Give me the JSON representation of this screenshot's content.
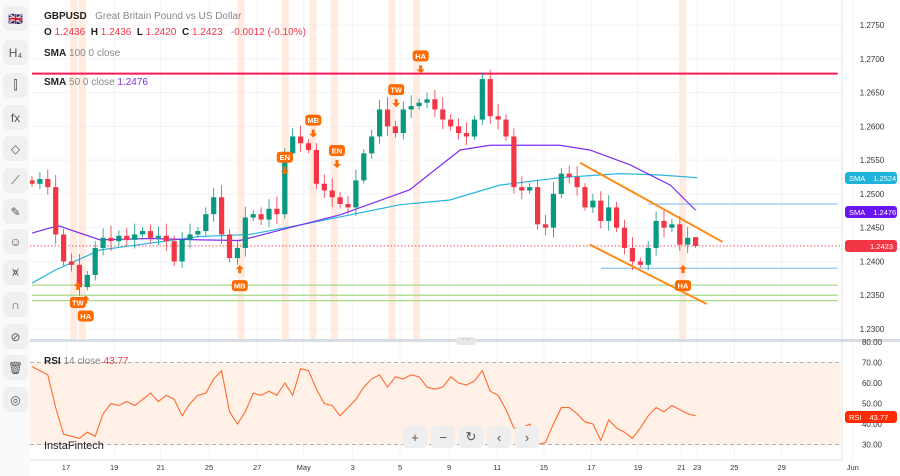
{
  "symbol": {
    "ticker": "GBPUSD",
    "name": "Great Britain Pound vs US Dollar"
  },
  "ohlc": {
    "o_label": "O",
    "o": "1.2436",
    "h_label": "H",
    "h": "1.2436",
    "l_label": "L",
    "l": "1.2420",
    "c_label": "C",
    "c": "1.2423",
    "change": "-0.0012 (-0.10%)"
  },
  "indicators": {
    "sma100": {
      "name": "SMA",
      "params": "100 0 close",
      "value": "1.2524",
      "color": "#26b6e0"
    },
    "sma50": {
      "name": "SMA",
      "params": "50 0 close",
      "value": "1.2476",
      "color": "#7e2ef0"
    },
    "rsi": {
      "name": "RSI",
      "params": "14 close",
      "value": "43.77",
      "color": "#ff6a2e"
    }
  },
  "sidebar": {
    "items": [
      {
        "name": "flag-gb-icon",
        "glyph": "🇬🇧"
      },
      {
        "name": "timeframe-h4-button",
        "glyph": "H₄"
      },
      {
        "name": "candles-icon",
        "glyph": "⫿"
      },
      {
        "name": "fx-indicators-icon",
        "glyph": "fx"
      },
      {
        "name": "shapes-icon",
        "glyph": "◇"
      },
      {
        "name": "lines-icon",
        "glyph": "⟋"
      },
      {
        "name": "brush-icon",
        "glyph": "✎"
      },
      {
        "name": "smiley-icon",
        "glyph": "☺"
      },
      {
        "name": "patterns-icon",
        "glyph": "⩙"
      },
      {
        "name": "magnet-icon",
        "glyph": "∩"
      },
      {
        "name": "eye-off-icon",
        "glyph": "⊘"
      },
      {
        "name": "trash-all-icon",
        "glyph": "🗑"
      },
      {
        "name": "camera-icon",
        "glyph": "◎"
      }
    ]
  },
  "controls": {
    "zoom_in": "+",
    "zoom_out": "−",
    "reset": "↻",
    "prev": "‹",
    "next": "›"
  },
  "watermark": "InstaFintech",
  "colors": {
    "up": "#089981",
    "down": "#f23645",
    "resistance": "#f7195a",
    "channel": "#ff8c1a",
    "support_blue": "#90c4f8",
    "support_green": "#a8d98a",
    "signal": "#ff6a00",
    "band": "#ffe4d6"
  },
  "chart_data": {
    "type": "candlestick",
    "price_axis": {
      "min": 1.2275,
      "max": 1.2775,
      "ticks": [
        "1.2750",
        "1.2700",
        "1.2650",
        "1.2600",
        "1.2550",
        "1.2500",
        "1.2450",
        "1.2400",
        "1.2350",
        "1.2300"
      ]
    },
    "time_axis": [
      {
        "label": "17",
        "at": 4.3
      },
      {
        "label": "19",
        "at": 10.4
      },
      {
        "label": "21",
        "at": 16.3
      },
      {
        "label": "25",
        "at": 22.4
      },
      {
        "label": "27",
        "at": 28.5
      },
      {
        "label": "May",
        "at": 34.4
      },
      {
        "label": "3",
        "at": 40.6
      },
      {
        "label": "5",
        "at": 46.6
      },
      {
        "label": "9",
        "at": 52.8
      },
      {
        "label": "11",
        "at": 58.9
      },
      {
        "label": "15",
        "at": 64.8
      },
      {
        "label": "17",
        "at": 70.8
      },
      {
        "label": "19",
        "at": 76.7
      },
      {
        "label": "21",
        "at": 82.2
      },
      {
        "label": "23",
        "at": 84.2
      },
      {
        "label": "25",
        "at": 88.9
      },
      {
        "label": "29",
        "at": 94.9
      },
      {
        "label": "Jun",
        "at": 103.9
      }
    ],
    "first_open": 1.252,
    "last_candle": {
      "open": 1.2436,
      "high": 1.2436,
      "low": 1.242,
      "close": 1.2423
    },
    "closes": [
      1.2515,
      1.2522,
      1.251,
      1.244,
      1.24,
      1.2395,
      1.2362,
      1.238,
      1.242,
      1.2435,
      1.243,
      1.2438,
      1.2432,
      1.244,
      1.2445,
      1.2435,
      1.2438,
      1.243,
      1.24,
      1.2432,
      1.244,
      1.2445,
      1.247,
      1.2495,
      1.244,
      1.2405,
      1.242,
      1.2465,
      1.247,
      1.2462,
      1.2478,
      1.247,
      1.256,
      1.2585,
      1.2575,
      1.2565,
      1.2515,
      1.2505,
      1.2495,
      1.2485,
      1.248,
      1.252,
      1.256,
      1.2585,
      1.2625,
      1.26,
      1.259,
      1.2625,
      1.263,
      1.2635,
      1.264,
      1.2625,
      1.261,
      1.26,
      1.259,
      1.2585,
      1.261,
      1.267,
      1.2615,
      1.261,
      1.2585,
      1.251,
      1.2505,
      1.251,
      1.2455,
      1.245,
      1.25,
      1.253,
      1.2525,
      1.251,
      1.248,
      1.249,
      1.246,
      1.248,
      1.245,
      1.242,
      1.24,
      1.2395,
      1.242,
      1.246,
      1.245,
      1.2455,
      1.2425,
      1.2435,
      1.2423
    ],
    "sma50": [
      [
        0,
        1.2442
      ],
      [
        3.3,
        1.2453
      ],
      [
        8.6,
        1.2432
      ],
      [
        14.9,
        1.2434
      ],
      [
        21.3,
        1.2432
      ],
      [
        26.3,
        1.2431
      ],
      [
        32.6,
        1.245
      ],
      [
        39,
        1.2469
      ],
      [
        47.8,
        1.2506
      ],
      [
        54.2,
        1.2565
      ],
      [
        58,
        1.2572
      ],
      [
        61.8,
        1.2572
      ],
      [
        66.8,
        1.2572
      ],
      [
        70.6,
        1.2565
      ],
      [
        75.7,
        1.2543
      ],
      [
        80.8,
        1.2513
      ],
      [
        84,
        1.2476
      ]
    ],
    "sma100": [
      [
        0,
        1.2368
      ],
      [
        2.9,
        1.2387
      ],
      [
        8.6,
        1.2417
      ],
      [
        21.3,
        1.2437
      ],
      [
        27.6,
        1.244
      ],
      [
        33.9,
        1.2454
      ],
      [
        40.3,
        1.2469
      ],
      [
        46.6,
        1.2484
      ],
      [
        52.9,
        1.2491
      ],
      [
        59.2,
        1.2513
      ],
      [
        66.8,
        1.2524
      ],
      [
        74.4,
        1.253
      ],
      [
        79.5,
        1.2528
      ],
      [
        84.2,
        1.2524
      ]
    ],
    "levels": [
      {
        "price": 1.2678,
        "kind": "resistance",
        "from": 0,
        "to": 102
      },
      {
        "price": 1.2485,
        "kind": "support_blue",
        "from": 78,
        "to": 102
      },
      {
        "price": 1.239,
        "kind": "support_blue",
        "from": 72,
        "to": 102
      },
      {
        "price": 1.2365,
        "kind": "support_green",
        "from": 0,
        "to": 102
      },
      {
        "price": 1.235,
        "kind": "support_green",
        "from": 0,
        "to": 102
      },
      {
        "price": 1.2342,
        "kind": "support_green",
        "from": 0,
        "to": 102
      }
    ],
    "channel": [
      {
        "from": [
          69.4,
          1.2546
        ],
        "to": [
          87.4,
          1.2429
        ]
      },
      {
        "from": [
          70.6,
          1.2425
        ],
        "to": [
          85.4,
          1.2337
        ]
      }
    ],
    "signals": [
      {
        "label": "TW",
        "dir": "up",
        "at": 5.8,
        "price": 1.234
      },
      {
        "label": "HA",
        "dir": "up",
        "at": 6.8,
        "price": 1.232
      },
      {
        "label": "MB",
        "dir": "up",
        "at": 26.3,
        "price": 1.2365
      },
      {
        "label": "EN",
        "dir": "down",
        "at": 32,
        "price": 1.2555
      },
      {
        "label": "MB",
        "dir": "down",
        "at": 35.6,
        "price": 1.261
      },
      {
        "label": "EN",
        "dir": "down",
        "at": 38.6,
        "price": 1.2565
      },
      {
        "label": "TW",
        "dir": "down",
        "at": 46.1,
        "price": 1.2655
      },
      {
        "label": "HA",
        "dir": "down",
        "at": 49.2,
        "price": 1.2705
      },
      {
        "label": "HA",
        "dir": "up",
        "at": 82.4,
        "price": 1.2365
      }
    ],
    "bands": [
      5.2,
      6.3,
      26.4,
      32,
      35.5,
      38.2,
      45.5,
      48.6,
      82.3
    ],
    "rsi": {
      "levels": [
        70,
        30
      ],
      "ticks": [
        "80.00",
        "70.00",
        "60.00",
        "50.00",
        "40.00",
        "30.00"
      ],
      "values": [
        68,
        66,
        64,
        48,
        35,
        34,
        33,
        36,
        34,
        45,
        50,
        49,
        51,
        49,
        52,
        55,
        51,
        54,
        52,
        44,
        50,
        54,
        55,
        62,
        66,
        46,
        40,
        46,
        55,
        54,
        56,
        54,
        60,
        54,
        67,
        66,
        57,
        50,
        49,
        44,
        48,
        52,
        58,
        62,
        64,
        58,
        63,
        62,
        64,
        63,
        58,
        57,
        58,
        63,
        60,
        59,
        61,
        66,
        56,
        54,
        47,
        38,
        38,
        40,
        30,
        31,
        40,
        48,
        48,
        45,
        41,
        40,
        32,
        42,
        38,
        36,
        33,
        38,
        44,
        48,
        46,
        49,
        47,
        45,
        44
      ]
    }
  }
}
